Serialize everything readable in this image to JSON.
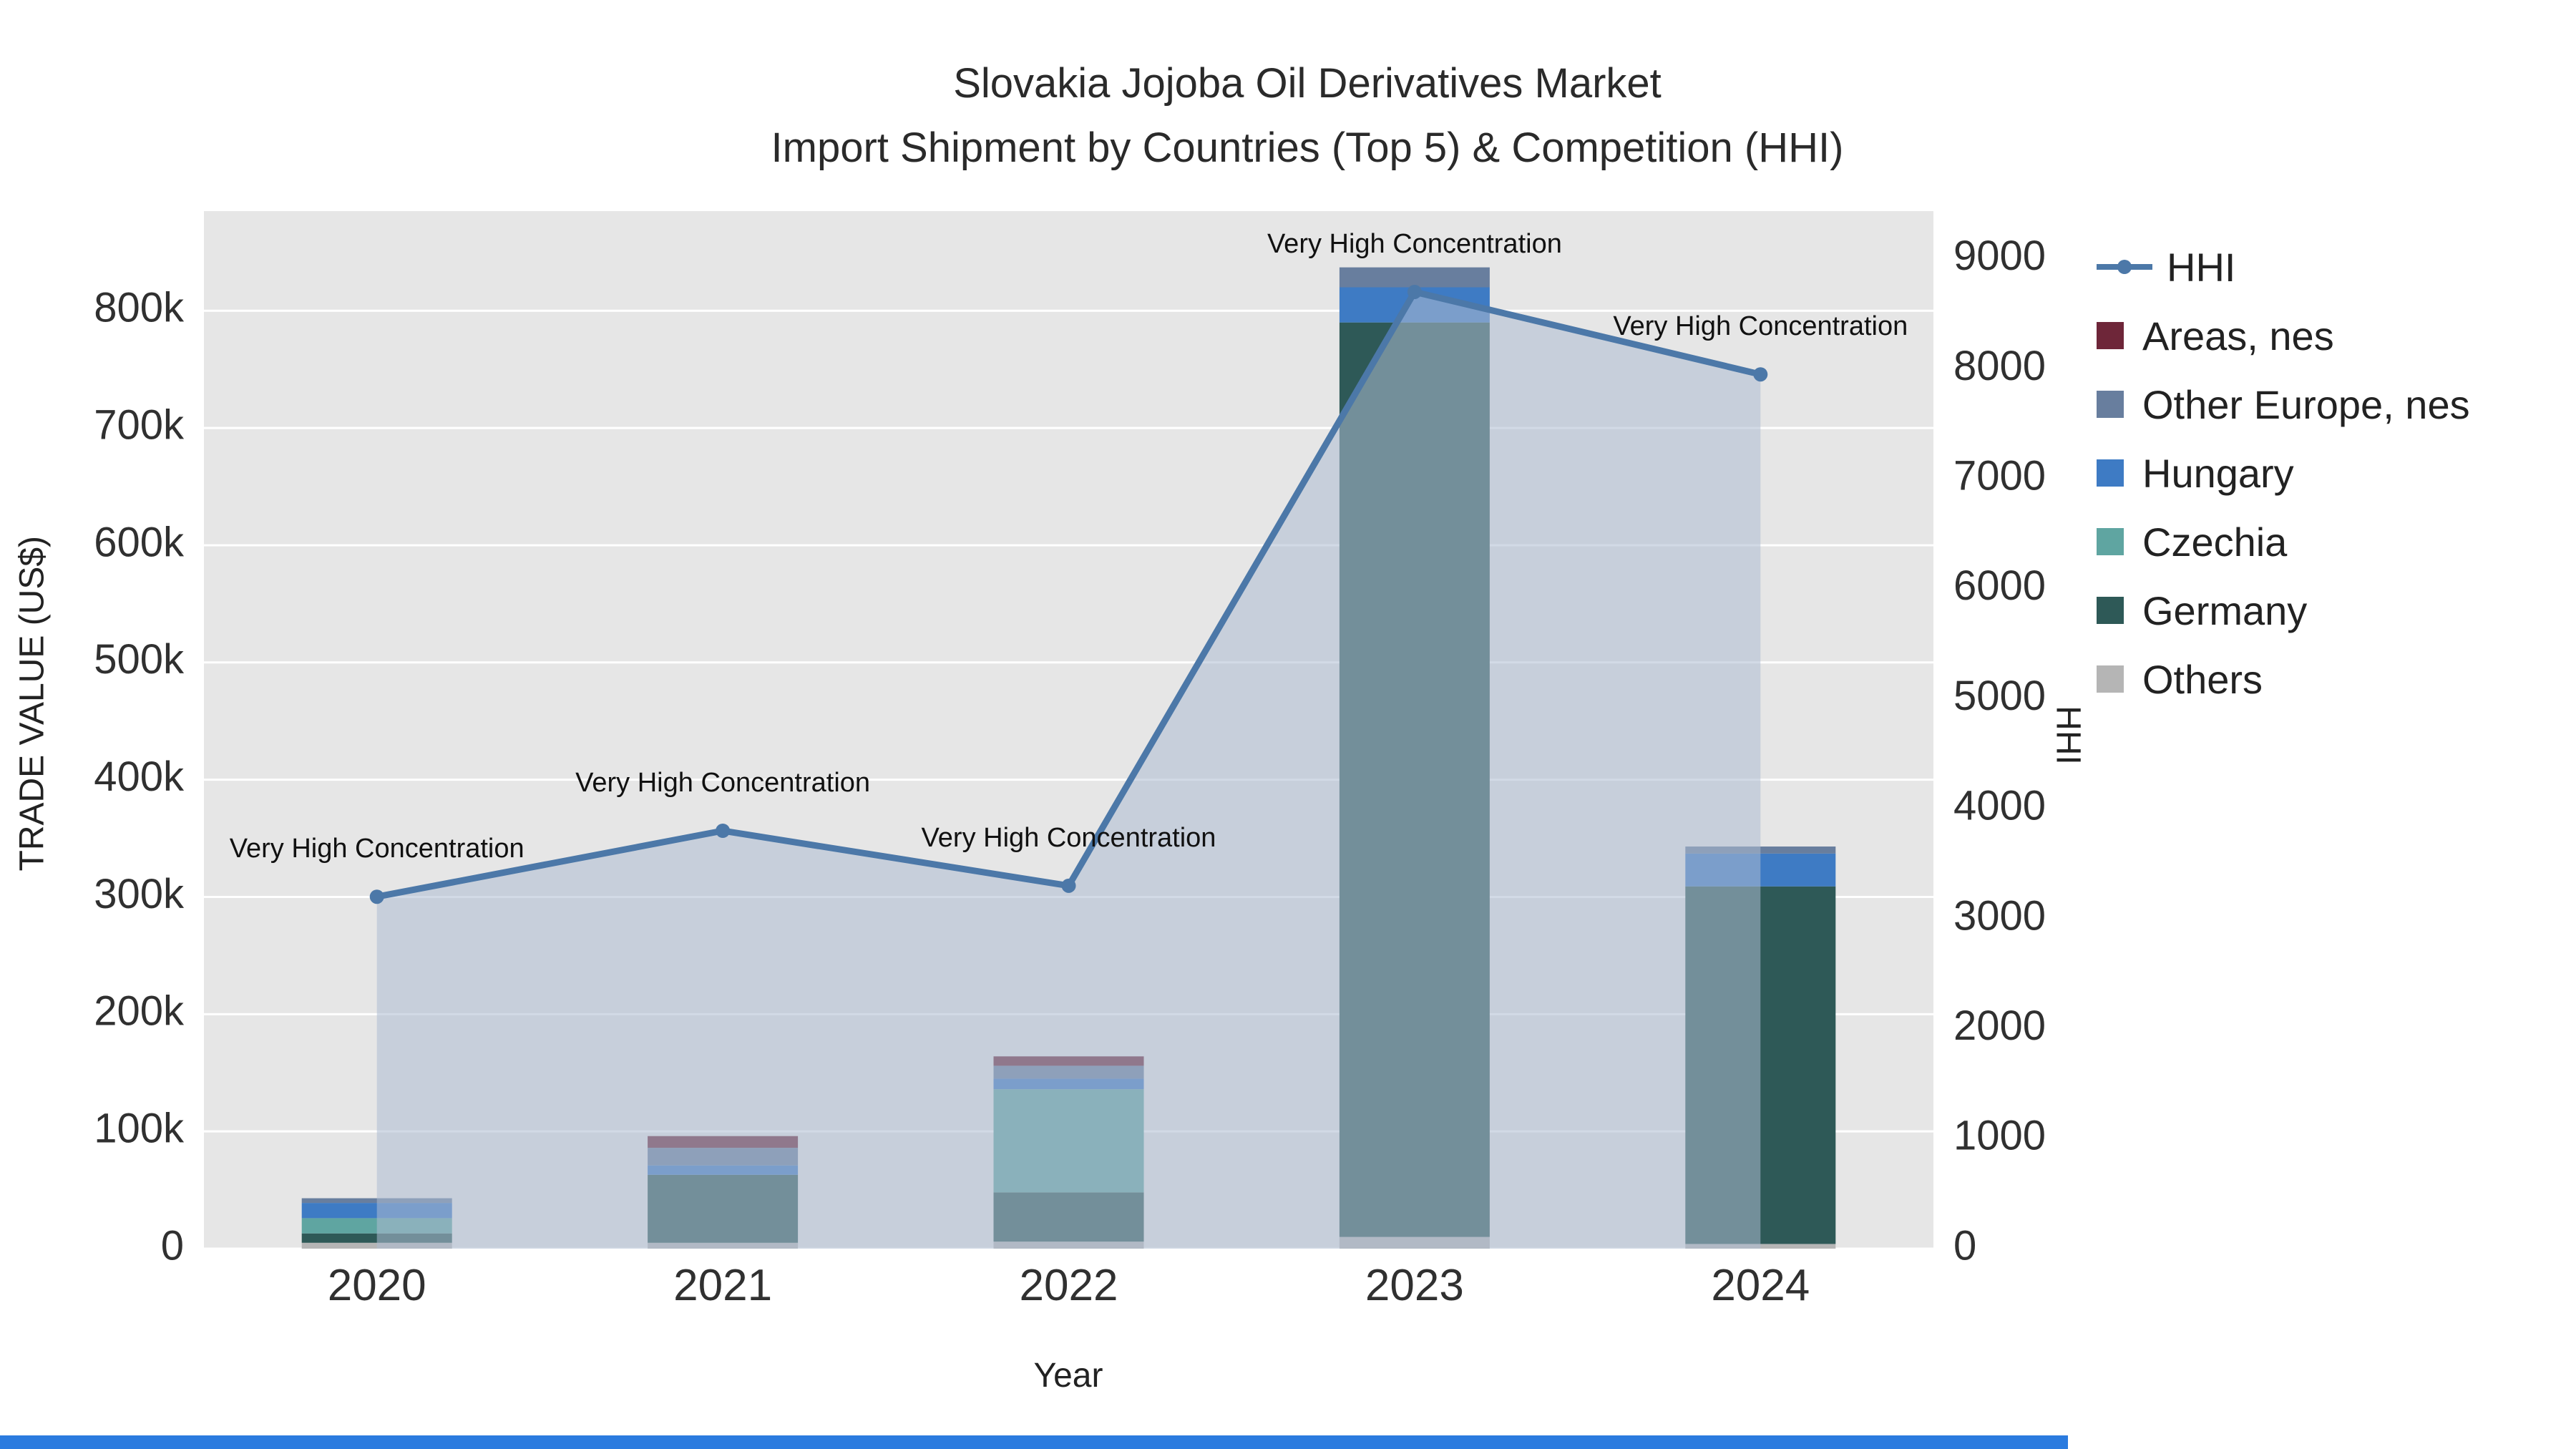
{
  "title": {
    "line1": "Slovakia Jojoba Oil Derivatives Market",
    "line2": "Import Shipment by Countries (Top 5) & Competition (HHI)"
  },
  "axes": {
    "left": {
      "title": "TRADE VALUE (US$)"
    },
    "right": {
      "title": "HHI"
    },
    "x": {
      "title": "Year"
    }
  },
  "legend": {
    "items": [
      {
        "label": "HHI",
        "type": "line",
        "color": "#4C78A8"
      },
      {
        "label": "Areas, nes",
        "type": "square",
        "color": "#6E2639"
      },
      {
        "label": "Other Europe, nes",
        "type": "square",
        "color": "#687E9E"
      },
      {
        "label": "Hungary",
        "type": "square",
        "color": "#3E7BC4"
      },
      {
        "label": "Czechia",
        "type": "square",
        "color": "#5FA5A1"
      },
      {
        "label": "Germany",
        "type": "square",
        "color": "#2E5957"
      },
      {
        "label": "Others",
        "type": "square",
        "color": "#B5B5B5"
      }
    ]
  },
  "colors": {
    "plot_bg": "#E6E6E6",
    "grid": "#FFFFFF",
    "hhi_line": "#4C78A8",
    "hhi_fill": "rgba(173,187,209,0.55)",
    "tick_text": "#303030",
    "annotation_text": "#111111",
    "footer_strip": "#2B7BDF"
  },
  "chart_data": {
    "type": "bar+line",
    "x": [
      "2020",
      "2021",
      "2022",
      "2023",
      "2024"
    ],
    "bar_value_unit": "US$",
    "stack_order": "bottom to top",
    "series": [
      {
        "name": "Others",
        "color": "#B5B5B5",
        "values": [
          5000,
          5000,
          6000,
          10000,
          4000
        ]
      },
      {
        "name": "Germany",
        "color": "#2E5957",
        "values": [
          8000,
          58000,
          42000,
          780000,
          305000
        ]
      },
      {
        "name": "Czechia",
        "color": "#5FA5A1",
        "values": [
          13000,
          0,
          88000,
          0,
          0
        ]
      },
      {
        "name": "Hungary",
        "color": "#3E7BC4",
        "values": [
          13000,
          8000,
          9000,
          30000,
          28000
        ]
      },
      {
        "name": "Other Europe, nes",
        "color": "#687E9E",
        "values": [
          4000,
          15000,
          11000,
          17000,
          6000
        ]
      },
      {
        "name": "Areas, nes",
        "color": "#6E2639",
        "values": [
          0,
          10000,
          8000,
          0,
          0
        ]
      }
    ],
    "line": {
      "name": "HHI",
      "values": [
        3200,
        3800,
        3300,
        8700,
        7950
      ],
      "annotation": "Very High Concentration"
    },
    "ylim_left": [
      0,
      885000
    ],
    "ylim_right": [
      0,
      9435
    ],
    "left_ticks": [
      {
        "v": 0,
        "label": "0"
      },
      {
        "v": 100000,
        "label": "100k"
      },
      {
        "v": 200000,
        "label": "200k"
      },
      {
        "v": 300000,
        "label": "300k"
      },
      {
        "v": 400000,
        "label": "400k"
      },
      {
        "v": 500000,
        "label": "500k"
      },
      {
        "v": 600000,
        "label": "600k"
      },
      {
        "v": 700000,
        "label": "700k"
      },
      {
        "v": 800000,
        "label": "800k"
      }
    ],
    "right_ticks": [
      {
        "v": 0,
        "label": "0"
      },
      {
        "v": 1000,
        "label": "1000"
      },
      {
        "v": 2000,
        "label": "2000"
      },
      {
        "v": 3000,
        "label": "3000"
      },
      {
        "v": 4000,
        "label": "4000"
      },
      {
        "v": 5000,
        "label": "5000"
      },
      {
        "v": 6000,
        "label": "6000"
      },
      {
        "v": 7000,
        "label": "7000"
      },
      {
        "v": 8000,
        "label": "8000"
      },
      {
        "v": 9000,
        "label": "9000"
      }
    ]
  }
}
